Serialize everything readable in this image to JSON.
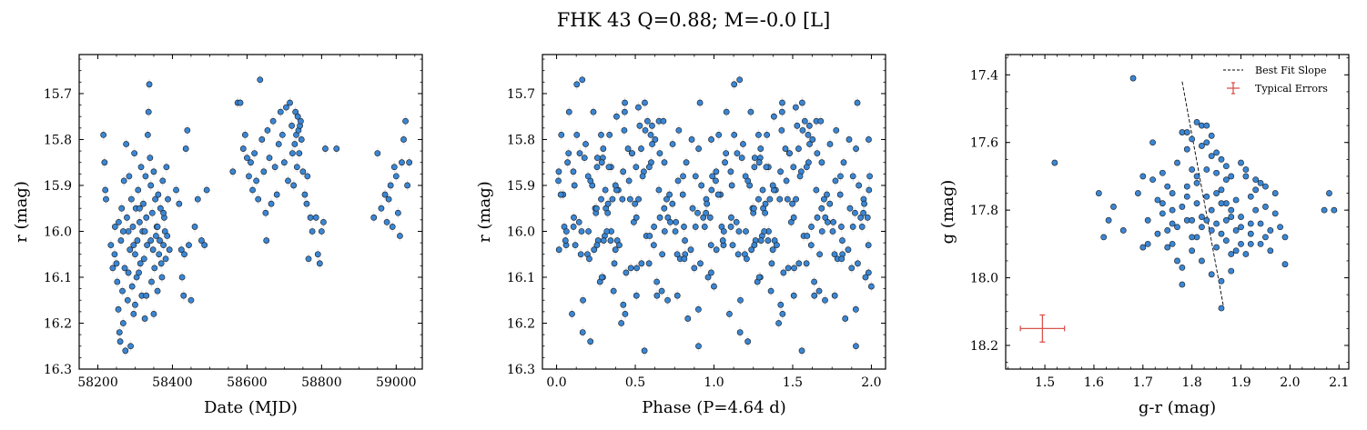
{
  "figure": {
    "suptitle": "FHK 43  Q=0.88; M=-0.0 [L]"
  },
  "chart_data": [
    {
      "type": "scatter",
      "title": "",
      "xlabel": "Date (MJD)",
      "ylabel": "r (mag)",
      "xlim": [
        58150,
        59070
      ],
      "ylim": [
        16.3,
        15.615
      ],
      "y_inverted": true,
      "xticks": [
        "58200",
        "58400",
        "58600",
        "58800",
        "59000"
      ],
      "xtick_values": [
        58200,
        58400,
        58600,
        58800,
        59000
      ],
      "yticks": [
        "15.7",
        "15.8",
        "15.9",
        "16.0",
        "16.1",
        "16.2",
        "16.3"
      ],
      "ytick_values": [
        15.7,
        15.8,
        15.9,
        16.0,
        16.1,
        16.2,
        16.3
      ],
      "marker_color": "#3a86d4",
      "errorbar_color": "#e3e3e3",
      "typical_y_error": 0.012,
      "points": [
        [
          58215,
          15.79
        ],
        [
          58218,
          15.85
        ],
        [
          58220,
          15.91
        ],
        [
          58222,
          15.93
        ],
        [
          58235,
          16.03
        ],
        [
          58246,
          15.99
        ],
        [
          58250,
          16.07
        ],
        [
          58252,
          16.11
        ],
        [
          58255,
          16.17
        ],
        [
          58258,
          16.22
        ],
        [
          58260,
          16.24
        ],
        [
          58262,
          16.02
        ],
        [
          58264,
          15.95
        ],
        [
          58266,
          16.13
        ],
        [
          58268,
          16.2
        ],
        [
          58270,
          15.89
        ],
        [
          58272,
          16.08
        ],
        [
          58274,
          16.26
        ],
        [
          58276,
          15.81
        ],
        [
          58278,
          15.97
        ],
        [
          58280,
          16.15
        ],
        [
          58282,
          16.0
        ],
        [
          58284,
          15.88
        ],
        [
          58286,
          16.04
        ],
        [
          58288,
          16.25
        ],
        [
          58290,
          15.93
        ],
        [
          58292,
          16.12
        ],
        [
          58294,
          15.99
        ],
        [
          58296,
          16.18
        ],
        [
          58298,
          15.83
        ],
        [
          58300,
          16.05
        ],
        [
          58302,
          15.95
        ],
        [
          58304,
          16.1
        ],
        [
          58306,
          16.02
        ],
        [
          58308,
          15.91
        ],
        [
          58310,
          16.09
        ],
        [
          58312,
          15.98
        ],
        [
          58314,
          16.07
        ],
        [
          58316,
          15.86
        ],
        [
          58318,
          16.14
        ],
        [
          58320,
          16.0
        ],
        [
          58322,
          15.94
        ],
        [
          58324,
          16.06
        ],
        [
          58326,
          16.19
        ],
        [
          58328,
          15.88
        ],
        [
          58330,
          15.97
        ],
        [
          58332,
          16.03
        ],
        [
          58334,
          15.79
        ],
        [
          58336,
          15.74
        ],
        [
          58338,
          15.68
        ],
        [
          58340,
          15.84
        ],
        [
          58342,
          15.9
        ],
        [
          58344,
          16.11
        ],
        [
          58346,
          15.96
        ],
        [
          58348,
          16.04
        ],
        [
          58350,
          15.87
        ],
        [
          58352,
          16.08
        ],
        [
          58354,
          15.93
        ],
        [
          58356,
          16.01
        ],
        [
          58358,
          15.99
        ],
        [
          58360,
          16.13
        ],
        [
          58362,
          15.92
        ],
        [
          58364,
          16.05
        ],
        [
          58366,
          16.02
        ],
        [
          58368,
          15.95
        ],
        [
          58370,
          16.07
        ],
        [
          58372,
          16.1
        ],
        [
          58374,
          15.89
        ],
        [
          58376,
          16.03
        ],
        [
          58378,
          15.97
        ],
        [
          58380,
          16.0
        ],
        [
          58382,
          16.06
        ],
        [
          58384,
          15.86
        ],
        [
          58386,
          16.01
        ],
        [
          58388,
          15.93
        ],
        [
          58245,
          16.05
        ],
        [
          58256,
          15.98
        ],
        [
          58268,
          16.0
        ],
        [
          58282,
          16.09
        ],
        [
          58296,
          16.03
        ],
        [
          58312,
          15.95
        ],
        [
          58326,
          16.0
        ],
        [
          58342,
          16.02
        ],
        [
          58360,
          15.99
        ],
        [
          58376,
          15.96
        ],
        [
          58392,
          16.04
        ],
        [
          58240,
          16.08
        ],
        [
          58300,
          16.16
        ],
        [
          58330,
          16.14
        ],
        [
          58350,
          16.18
        ],
        [
          58410,
          15.91
        ],
        [
          58418,
          15.94
        ],
        [
          58424,
          16.04
        ],
        [
          58426,
          16.1
        ],
        [
          58430,
          16.14
        ],
        [
          58432,
          16.05
        ],
        [
          58436,
          15.82
        ],
        [
          58440,
          15.78
        ],
        [
          58444,
          16.03
        ],
        [
          58450,
          16.15
        ],
        [
          58460,
          15.99
        ],
        [
          58468,
          15.93
        ],
        [
          58478,
          16.02
        ],
        [
          58486,
          16.03
        ],
        [
          58492,
          15.91
        ],
        [
          58562,
          15.87
        ],
        [
          58575,
          15.72
        ],
        [
          58582,
          15.72
        ],
        [
          58590,
          15.82
        ],
        [
          58595,
          15.79
        ],
        [
          58600,
          15.84
        ],
        [
          58605,
          15.88
        ],
        [
          58610,
          15.85
        ],
        [
          58615,
          15.91
        ],
        [
          58620,
          15.83
        ],
        [
          58625,
          15.89
        ],
        [
          58630,
          15.93
        ],
        [
          58635,
          15.67
        ],
        [
          58640,
          15.8
        ],
        [
          58645,
          15.87
        ],
        [
          58650,
          15.96
        ],
        [
          58652,
          16.02
        ],
        [
          58655,
          15.78
        ],
        [
          58660,
          15.84
        ],
        [
          58665,
          15.94
        ],
        [
          58670,
          15.76
        ],
        [
          58675,
          15.86
        ],
        [
          58680,
          15.92
        ],
        [
          58685,
          15.81
        ],
        [
          58690,
          15.74
        ],
        [
          58695,
          15.79
        ],
        [
          58700,
          15.85
        ],
        [
          58705,
          15.73
        ],
        [
          58710,
          15.89
        ],
        [
          58715,
          15.72
        ],
        [
          58720,
          15.77
        ],
        [
          58722,
          15.83
        ],
        [
          58725,
          15.9
        ],
        [
          58728,
          15.81
        ],
        [
          58730,
          15.74
        ],
        [
          58732,
          15.79
        ],
        [
          58734,
          15.86
        ],
        [
          58736,
          15.75
        ],
        [
          58738,
          15.78
        ],
        [
          58740,
          15.83
        ],
        [
          58742,
          15.77
        ],
        [
          58744,
          15.76
        ],
        [
          58746,
          15.8
        ],
        [
          58750,
          15.87
        ],
        [
          58755,
          15.92
        ],
        [
          58760,
          15.94
        ],
        [
          58762,
          15.88
        ],
        [
          58765,
          16.06
        ],
        [
          58770,
          15.97
        ],
        [
          58775,
          16.0
        ],
        [
          58785,
          15.97
        ],
        [
          58790,
          16.05
        ],
        [
          58795,
          16.07
        ],
        [
          58800,
          16.0
        ],
        [
          58805,
          15.98
        ],
        [
          58810,
          15.82
        ],
        [
          58840,
          15.82
        ],
        [
          58940,
          15.97
        ],
        [
          58950,
          15.83
        ],
        [
          58960,
          15.95
        ],
        [
          58970,
          15.92
        ],
        [
          58975,
          15.98
        ],
        [
          58980,
          15.93
        ],
        [
          58985,
          15.9
        ],
        [
          58990,
          15.99
        ],
        [
          58995,
          15.86
        ],
        [
          59000,
          15.88
        ],
        [
          59005,
          15.96
        ],
        [
          59010,
          16.01
        ],
        [
          59015,
          15.85
        ],
        [
          59020,
          15.8
        ],
        [
          59025,
          15.76
        ],
        [
          59030,
          15.9
        ],
        [
          59035,
          15.85
        ]
      ]
    },
    {
      "type": "scatter",
      "title": "",
      "xlabel": "Phase (P=4.64 d)",
      "ylabel": "r (mag)",
      "xlim": [
        -0.09,
        2.09
      ],
      "ylim": [
        16.3,
        15.615
      ],
      "y_inverted": true,
      "xticks": [
        "0.0",
        "0.5",
        "1.0",
        "1.5",
        "2.0"
      ],
      "xtick_values": [
        0,
        0.5,
        1.0,
        1.5,
        2.0
      ],
      "yticks": [
        "15.7",
        "15.8",
        "15.9",
        "16.0",
        "16.1",
        "16.2",
        "16.3"
      ],
      "ytick_values": [
        15.7,
        15.8,
        15.9,
        16.0,
        16.1,
        16.2,
        16.3
      ],
      "marker_color": "#3a86d4",
      "errorbar_color": "#e3e3e3",
      "typical_y_error": 0.012,
      "folded_from": 0
    },
    {
      "type": "scatter",
      "title": "",
      "xlabel": "g-r (mag)",
      "ylabel": "g (mag)",
      "xlim": [
        1.42,
        2.12
      ],
      "ylim": [
        18.27,
        17.34
      ],
      "y_inverted": true,
      "xticks": [
        "1.5",
        "1.6",
        "1.7",
        "1.8",
        "1.9",
        "2.0",
        "2.1"
      ],
      "xtick_values": [
        1.5,
        1.6,
        1.7,
        1.8,
        1.9,
        2.0,
        2.1
      ],
      "yticks": [
        "17.4",
        "17.6",
        "17.8",
        "18.0",
        "18.2"
      ],
      "ytick_values": [
        17.4,
        17.6,
        17.8,
        18.0,
        18.2
      ],
      "marker_color": "#3a86d4",
      "legend": {
        "placement": "top-right",
        "entries": [
          "Best Fit Slope",
          "Typical Errors"
        ]
      },
      "best_fit_line": {
        "x": [
          1.78,
          1.865
        ],
        "y": [
          17.42,
          18.09
        ],
        "color": "#000000"
      },
      "typical_errors": {
        "x": 1.495,
        "y": 18.15,
        "xerr": 0.045,
        "yerr": 0.04,
        "color": "#d9534f"
      },
      "points": [
        [
          1.68,
          17.41
        ],
        [
          1.52,
          17.66
        ],
        [
          1.61,
          17.75
        ],
        [
          1.64,
          17.79
        ],
        [
          1.63,
          17.83
        ],
        [
          1.62,
          17.88
        ],
        [
          1.66,
          17.86
        ],
        [
          1.69,
          17.75
        ],
        [
          1.7,
          17.7
        ],
        [
          1.72,
          17.6
        ],
        [
          1.71,
          17.83
        ],
        [
          1.73,
          17.77
        ],
        [
          1.74,
          17.81
        ],
        [
          1.75,
          17.86
        ],
        [
          1.76,
          17.9
        ],
        [
          1.77,
          17.95
        ],
        [
          1.78,
          17.57
        ],
        [
          1.79,
          17.62
        ],
        [
          1.8,
          17.68
        ],
        [
          1.81,
          17.72
        ],
        [
          1.82,
          17.55
        ],
        [
          1.83,
          17.6
        ],
        [
          1.84,
          17.64
        ],
        [
          1.85,
          17.69
        ],
        [
          1.86,
          17.74
        ],
        [
          1.87,
          17.78
        ],
        [
          1.88,
          17.82
        ],
        [
          1.89,
          17.86
        ],
        [
          1.9,
          17.9
        ],
        [
          1.91,
          17.93
        ],
        [
          1.92,
          17.76
        ],
        [
          1.93,
          17.8
        ],
        [
          1.94,
          17.84
        ],
        [
          1.95,
          17.88
        ],
        [
          1.96,
          17.92
        ],
        [
          1.97,
          17.81
        ],
        [
          1.98,
          17.85
        ],
        [
          1.99,
          17.96
        ],
        [
          1.77,
          17.66
        ],
        [
          1.79,
          17.83
        ],
        [
          1.81,
          17.88
        ],
        [
          1.83,
          17.76
        ],
        [
          1.85,
          17.91
        ],
        [
          1.87,
          17.71
        ],
        [
          1.89,
          17.77
        ],
        [
          1.91,
          17.7
        ],
        [
          1.93,
          17.74
        ],
        [
          1.95,
          17.79
        ],
        [
          1.76,
          17.75
        ],
        [
          1.78,
          17.79
        ],
        [
          1.8,
          17.92
        ],
        [
          1.82,
          17.85
        ],
        [
          1.84,
          17.8
        ],
        [
          1.86,
          17.87
        ],
        [
          1.88,
          17.93
        ],
        [
          1.9,
          17.82
        ],
        [
          1.92,
          17.87
        ],
        [
          1.94,
          17.72
        ],
        [
          1.72,
          17.71
        ],
        [
          1.74,
          17.69
        ],
        [
          1.75,
          17.73
        ],
        [
          1.76,
          17.8
        ],
        [
          1.77,
          17.85
        ],
        [
          1.79,
          17.76
        ],
        [
          1.81,
          17.78
        ],
        [
          1.83,
          17.83
        ],
        [
          1.85,
          17.84
        ],
        [
          1.87,
          17.89
        ],
        [
          1.89,
          17.92
        ],
        [
          1.75,
          17.91
        ],
        [
          1.78,
          17.97
        ],
        [
          1.8,
          17.88
        ],
        [
          1.82,
          17.95
        ],
        [
          1.84,
          17.99
        ],
        [
          1.86,
          18.01
        ],
        [
          1.88,
          17.98
        ],
        [
          1.73,
          17.87
        ],
        [
          1.71,
          17.9
        ],
        [
          1.74,
          17.78
        ],
        [
          1.8,
          17.59
        ],
        [
          1.82,
          17.61
        ],
        [
          1.83,
          17.55
        ],
        [
          1.84,
          17.58
        ],
        [
          1.85,
          17.63
        ],
        [
          1.86,
          17.65
        ],
        [
          1.87,
          17.67
        ],
        [
          1.88,
          17.7
        ],
        [
          1.9,
          17.66
        ],
        [
          1.91,
          17.68
        ],
        [
          1.93,
          17.71
        ],
        [
          1.95,
          17.73
        ],
        [
          1.97,
          17.75
        ],
        [
          1.99,
          17.88
        ],
        [
          1.96,
          17.86
        ],
        [
          1.94,
          17.9
        ],
        [
          1.92,
          17.84
        ],
        [
          1.78,
          18.02
        ],
        [
          1.86,
          18.09
        ],
        [
          1.81,
          17.54
        ],
        [
          1.79,
          17.57
        ],
        [
          2.07,
          17.8
        ],
        [
          2.08,
          17.75
        ],
        [
          2.09,
          17.8
        ],
        [
          1.7,
          17.91
        ],
        [
          1.76,
          17.84
        ],
        [
          1.8,
          17.83
        ],
        [
          1.82,
          17.82
        ],
        [
          1.84,
          17.86
        ],
        [
          1.86,
          17.78
        ],
        [
          1.88,
          17.8
        ],
        [
          1.9,
          17.85
        ],
        [
          1.92,
          17.9
        ],
        [
          1.79,
          17.73
        ],
        [
          1.81,
          17.7
        ],
        [
          1.83,
          17.68
        ],
        [
          1.85,
          17.75
        ],
        [
          1.87,
          17.83
        ]
      ]
    }
  ]
}
